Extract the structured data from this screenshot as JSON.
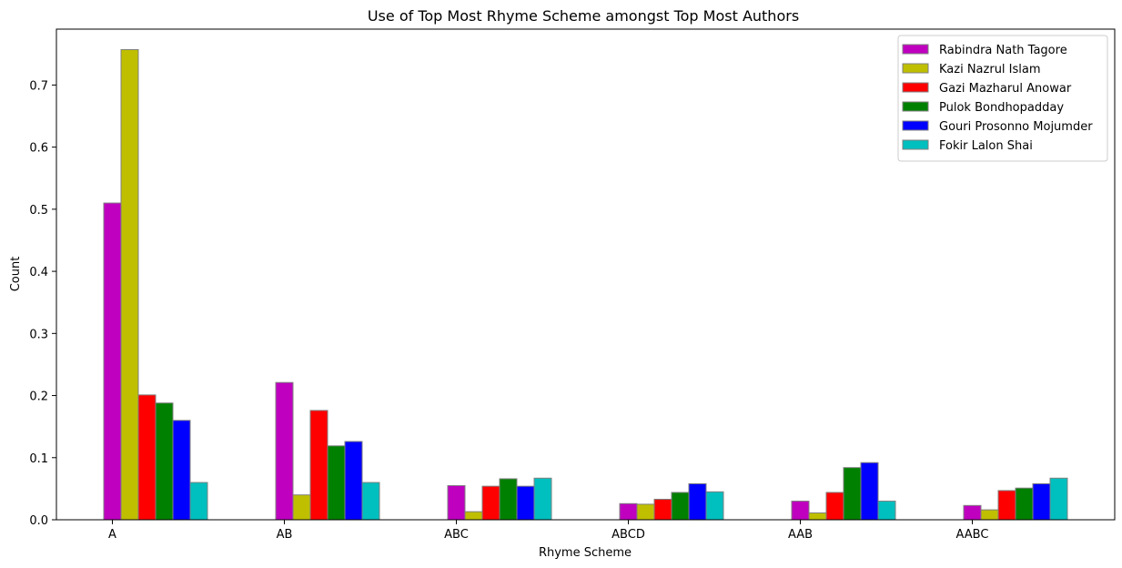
{
  "chart_data": {
    "type": "bar",
    "title": "Use of Top Most Rhyme Scheme amongst Top Most Authors",
    "xlabel": "Rhyme Scheme",
    "ylabel": "Count",
    "categories": [
      "A",
      "AB",
      "ABC",
      "ABCD",
      "AAB",
      "AABC"
    ],
    "ylim": [
      0,
      0.79
    ],
    "yticks": [
      "0.0",
      "0.1",
      "0.2",
      "0.3",
      "0.4",
      "0.5",
      "0.6",
      "0.7"
    ],
    "legend_position": "top-right",
    "grid": false,
    "series": [
      {
        "name": "Rabindra Nath Tagore",
        "color": "#bf00bf",
        "values": [
          0.51,
          0.221,
          0.055,
          0.026,
          0.03,
          0.023
        ]
      },
      {
        "name": "Kazi Nazrul Islam",
        "color": "#bfbf00",
        "values": [
          0.757,
          0.04,
          0.013,
          0.025,
          0.011,
          0.016
        ]
      },
      {
        "name": "Gazi Mazharul Anowar",
        "color": "#ff0000",
        "values": [
          0.201,
          0.176,
          0.054,
          0.033,
          0.044,
          0.047
        ]
      },
      {
        "name": "Pulok Bondhopadday",
        "color": "#008000",
        "values": [
          0.188,
          0.119,
          0.066,
          0.044,
          0.084,
          0.051
        ]
      },
      {
        "name": "Gouri Prosonno Mojumder",
        "color": "#0000ff",
        "values": [
          0.16,
          0.126,
          0.054,
          0.058,
          0.092,
          0.058
        ]
      },
      {
        "name": "Fokir Lalon Shai",
        "color": "#00bfbf",
        "values": [
          0.06,
          0.06,
          0.067,
          0.045,
          0.03,
          0.067
        ]
      }
    ]
  }
}
